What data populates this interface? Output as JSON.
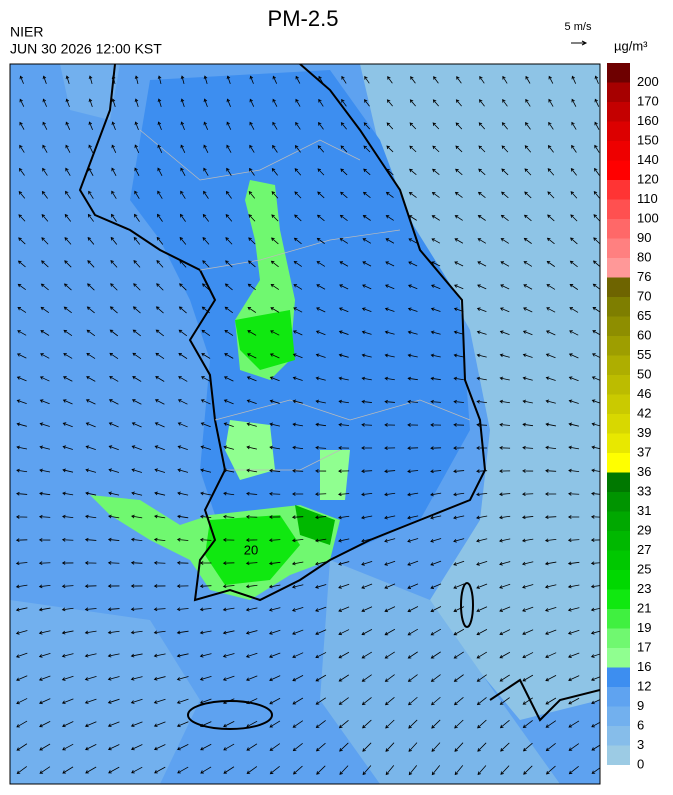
{
  "title": "PM-2.5",
  "agency": "NIER",
  "timestamp": "JUN 30 2026 12:00 KST",
  "wind_reference": "5 m/s",
  "unit": "µg/m³",
  "contour_label": "20",
  "colorbar": {
    "levels": [
      0,
      3,
      6,
      9,
      12,
      16,
      17,
      19,
      21,
      23,
      25,
      27,
      29,
      31,
      33,
      36,
      37,
      39,
      42,
      46,
      50,
      55,
      60,
      65,
      70,
      76,
      80,
      90,
      100,
      110,
      120,
      140,
      150,
      160,
      170,
      200
    ],
    "colors": [
      "#9ccbe4",
      "#86bdea",
      "#72b0ee",
      "#5fa3f0",
      "#3d8ef0",
      "#90ff90",
      "#70f870",
      "#40f040",
      "#10e810",
      "#00d800",
      "#00c800",
      "#00b800",
      "#00a800",
      "#009400",
      "#007800",
      "#ffff00",
      "#e8e800",
      "#d8d800",
      "#caca00",
      "#bcbc00",
      "#aeae00",
      "#9e9e00",
      "#8e8e00",
      "#7e7e00",
      "#6e6400",
      "#ff9898",
      "#ff8080",
      "#ff6868",
      "#ff5050",
      "#ff3434",
      "#ff0000",
      "#ee0000",
      "#dc0000",
      "#c40000",
      "#a60000",
      "#6e0000"
    ]
  }
}
